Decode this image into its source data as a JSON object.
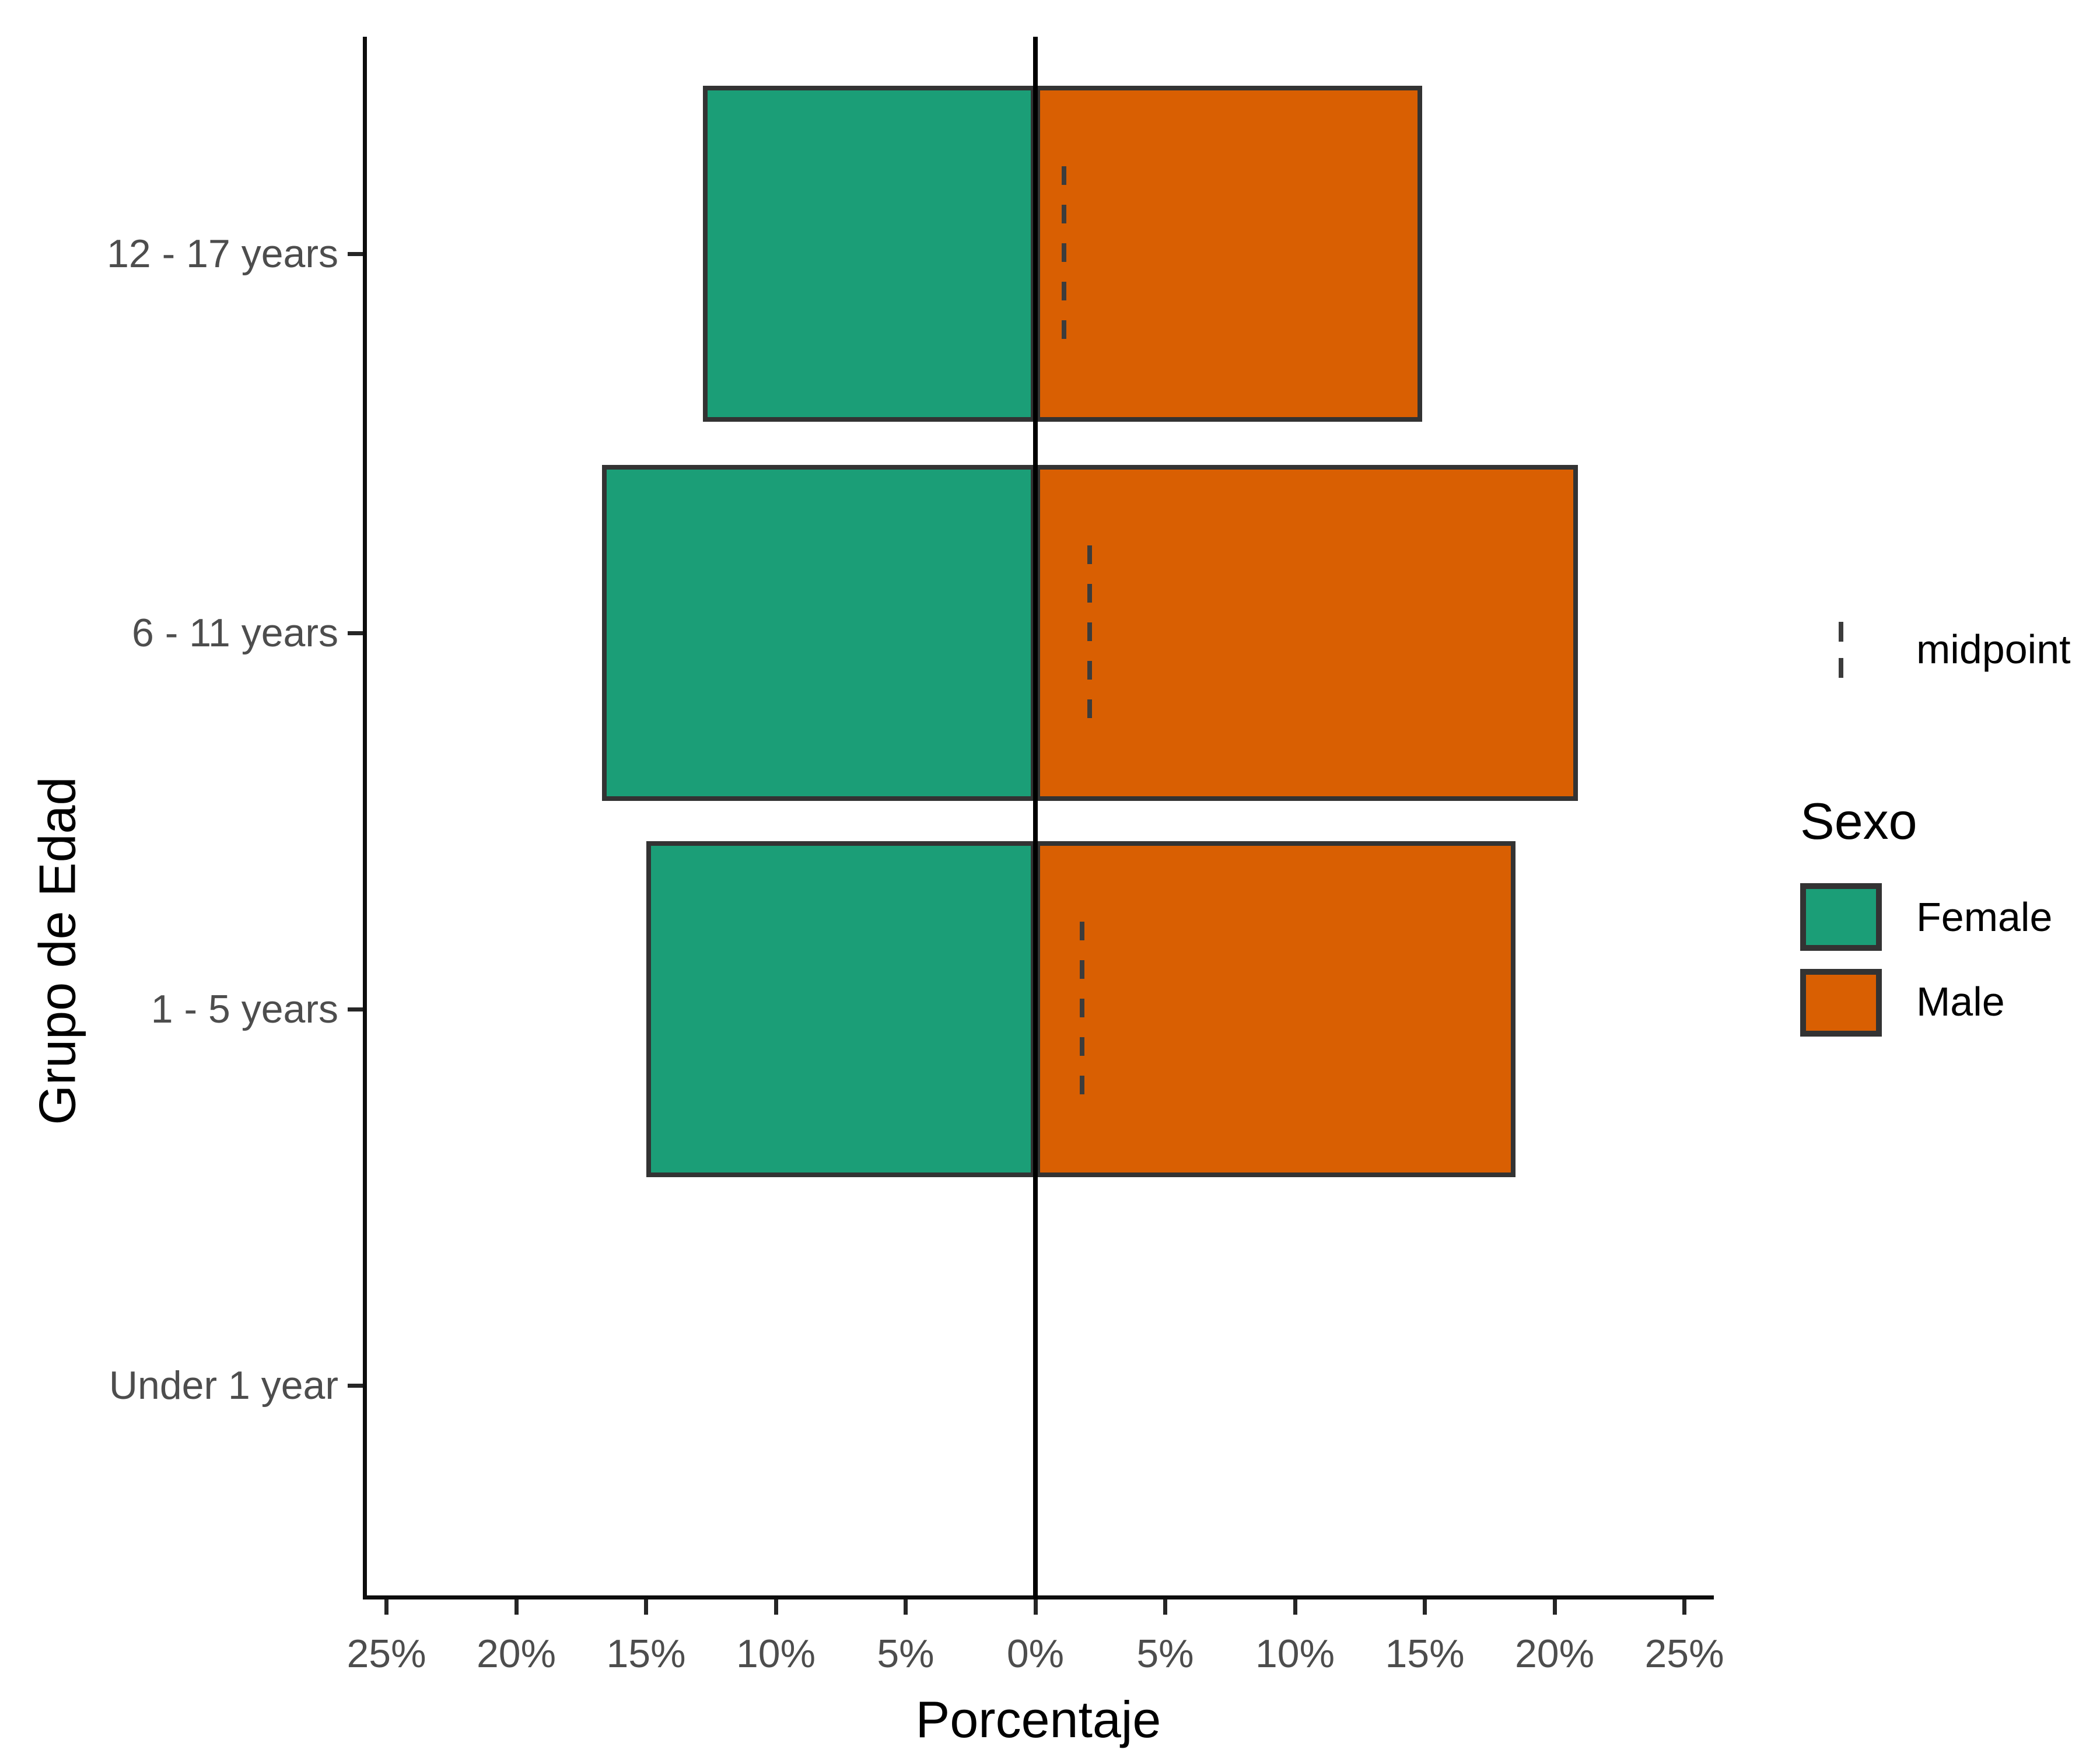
{
  "axes": {
    "x_title": "Porcentaje",
    "y_title": "Grupo de Edad",
    "x_tick_labels": [
      "25%",
      "20%",
      "15%",
      "10%",
      "5%",
      "0%",
      "5%",
      "10%",
      "15%",
      "20%",
      "25%"
    ],
    "y_tick_labels": [
      "12 - 17 years",
      "6 - 11 years",
      "1 - 5 years",
      "Under 1 year"
    ]
  },
  "legend": {
    "midpoint_label": "midpoint",
    "title": "Sexo",
    "items": [
      {
        "label": "Female",
        "color": "#1B9E77"
      },
      {
        "label": "Male",
        "color": "#D95F02"
      }
    ]
  },
  "colors": {
    "female": "#1B9E77",
    "male": "#D95F02",
    "bar_border": "#333333",
    "axis": "#0D0D0D",
    "zero_line": "#000000",
    "tick_text": "#4D4D4D",
    "midpoint_dash": "#3C3C3C"
  },
  "chart_data": {
    "type": "bar",
    "subtype": "population_pyramid",
    "title": "",
    "xlabel": "Porcentaje",
    "ylabel": "Grupo de Edad",
    "categories": [
      "12 - 17 years",
      "6 - 11 years",
      "1 - 5 years",
      "Under 1 year"
    ],
    "series": [
      {
        "name": "Female",
        "side": "left",
        "values": [
          12.8,
          16.7,
          15.0,
          0
        ]
      },
      {
        "name": "Male",
        "side": "right",
        "values": [
          14.9,
          20.9,
          18.5,
          0
        ]
      }
    ],
    "midpoint_markers": [
      1.1,
      2.1,
      1.8,
      null
    ],
    "x_ticks_pct": [
      -25,
      -20,
      -15,
      -10,
      -5,
      0,
      5,
      10,
      15,
      20,
      25
    ],
    "xlim": [
      -26.5,
      26.5
    ],
    "grid": false,
    "legend_position": "right",
    "legend_entries": [
      "midpoint",
      "Female",
      "Male"
    ]
  }
}
